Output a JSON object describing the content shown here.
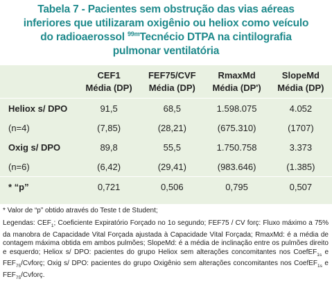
{
  "title": {
    "lines": [
      [
        {
          "text": "Tabela 7 - Pacientes sem obstrução das vias aéreas",
          "style": "normal"
        }
      ],
      [
        {
          "text": "inferiores que utilizaram oxigênio ou heliox como veículo",
          "style": "normal"
        }
      ],
      [
        {
          "text": "do radioaerossol ",
          "style": "normal"
        },
        {
          "text": "99m",
          "style": "sup"
        },
        {
          "text": "Tecnécio DTPA na cintilografia",
          "style": "normal"
        }
      ],
      [
        {
          "text": "pulmonar ventilatória",
          "style": "normal"
        }
      ]
    ]
  },
  "table": {
    "columns": [
      {
        "name": "CEF1",
        "sub": "Média (DP)"
      },
      {
        "name": "FEF75/CVF",
        "sub": "Média (DP)"
      },
      {
        "name": "RmaxMd",
        "sub": "Média (DP')"
      },
      {
        "name": "SlopeMd",
        "sub": "Média (DP)"
      }
    ],
    "rows": [
      {
        "label": "Heliox s/ DPO",
        "style": "bold",
        "cells": [
          "91,5",
          "68,5",
          "1.598.075",
          "4.052"
        ]
      },
      {
        "label": "(n=4)",
        "style": "normal",
        "cells": [
          "(7,85)",
          "(28,21)",
          "(675.310)",
          "(1707)"
        ]
      },
      {
        "label": "Oxig s/ DPO",
        "style": "bold",
        "cells": [
          "89,8",
          "55,5",
          "1.750.758",
          "3.373"
        ]
      },
      {
        "label": "(n=6)",
        "style": "normal",
        "cells": [
          "(6,42)",
          "(29,41)",
          "(983.646)",
          "(1.385)"
        ]
      },
      {
        "label": "* “p”",
        "style": "bold",
        "cells": [
          "0,721",
          "0,506",
          "0,795",
          "0,507"
        ]
      }
    ]
  },
  "note": "* Valor de “p” obtido através do Teste t de Student;",
  "legend": [
    {
      "text": "Legendas: CEF",
      "style": "normal"
    },
    {
      "text": "1",
      "style": "sub"
    },
    {
      "text": "; Coeficiente Expiratório Forçado no 1o segundo; FEF75 / CV forç: Fluxo máximo a 75% da manobra de Capacidade Vital Forçada ajustada à Capacidade Vital Forçada; RmaxMd: é a média de contagem máxima obtida em ambos pulmões; SlopeMd: é a média de inclinação entre os pulmões direito e esquerdo; Heliox s/ DPO: pacientes do grupo Heliox sem alterações concomitantes nos CoefEF",
      "style": "normal"
    },
    {
      "text": "1s",
      "style": "sub"
    },
    {
      "text": " e FEF",
      "style": "normal"
    },
    {
      "text": "75",
      "style": "sub"
    },
    {
      "text": "/Cvforç; Oxig s/ DPO: pacientes do grupo Oxigênio sem alterações concomitantes nos CoefEF",
      "style": "normal"
    },
    {
      "text": "1s",
      "style": "sub"
    },
    {
      "text": " e FEF",
      "style": "normal"
    },
    {
      "text": "75",
      "style": "sub"
    },
    {
      "text": "/Cvforç.",
      "style": "normal"
    }
  ]
}
